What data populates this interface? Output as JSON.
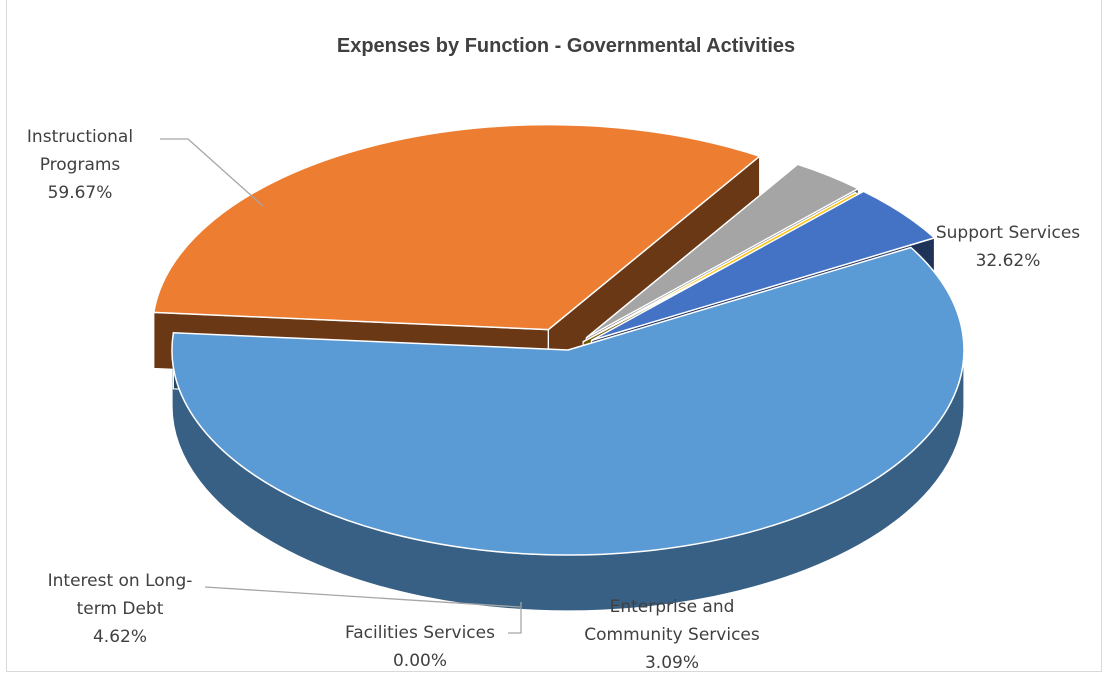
{
  "chart_data": {
    "type": "pie",
    "title": "Expenses by Function  - Governmental Activities",
    "slices": [
      {
        "name": "Instructional Programs",
        "label_lines": [
          "Instructional",
          "Programs"
        ],
        "value": 59.67,
        "value_label": "59.67%",
        "color": "#5b9bd5"
      },
      {
        "name": "Support Services",
        "label_lines": [
          "Support Services"
        ],
        "value": 32.62,
        "value_label": "32.62%",
        "color": "#ed7d31"
      },
      {
        "name": "Enterprise and Community Services",
        "label_lines": [
          "Enterprise and",
          "Community Services"
        ],
        "value": 3.09,
        "value_label": "3.09%",
        "color": "#a5a5a5"
      },
      {
        "name": "Facilities Services",
        "label_lines": [
          "Facilities Services"
        ],
        "value": 0.0,
        "value_label": "0.00%",
        "color": "#ffc000"
      },
      {
        "name": "Interest on Long-term Debt",
        "label_lines": [
          "Interest on Long-",
          "term Debt"
        ],
        "value": 4.62,
        "value_label": "4.62%",
        "color": "#4472c4"
      }
    ],
    "exploded": true,
    "three_d": true,
    "legend": "none",
    "data_labels": "outside-with-leader-lines"
  }
}
